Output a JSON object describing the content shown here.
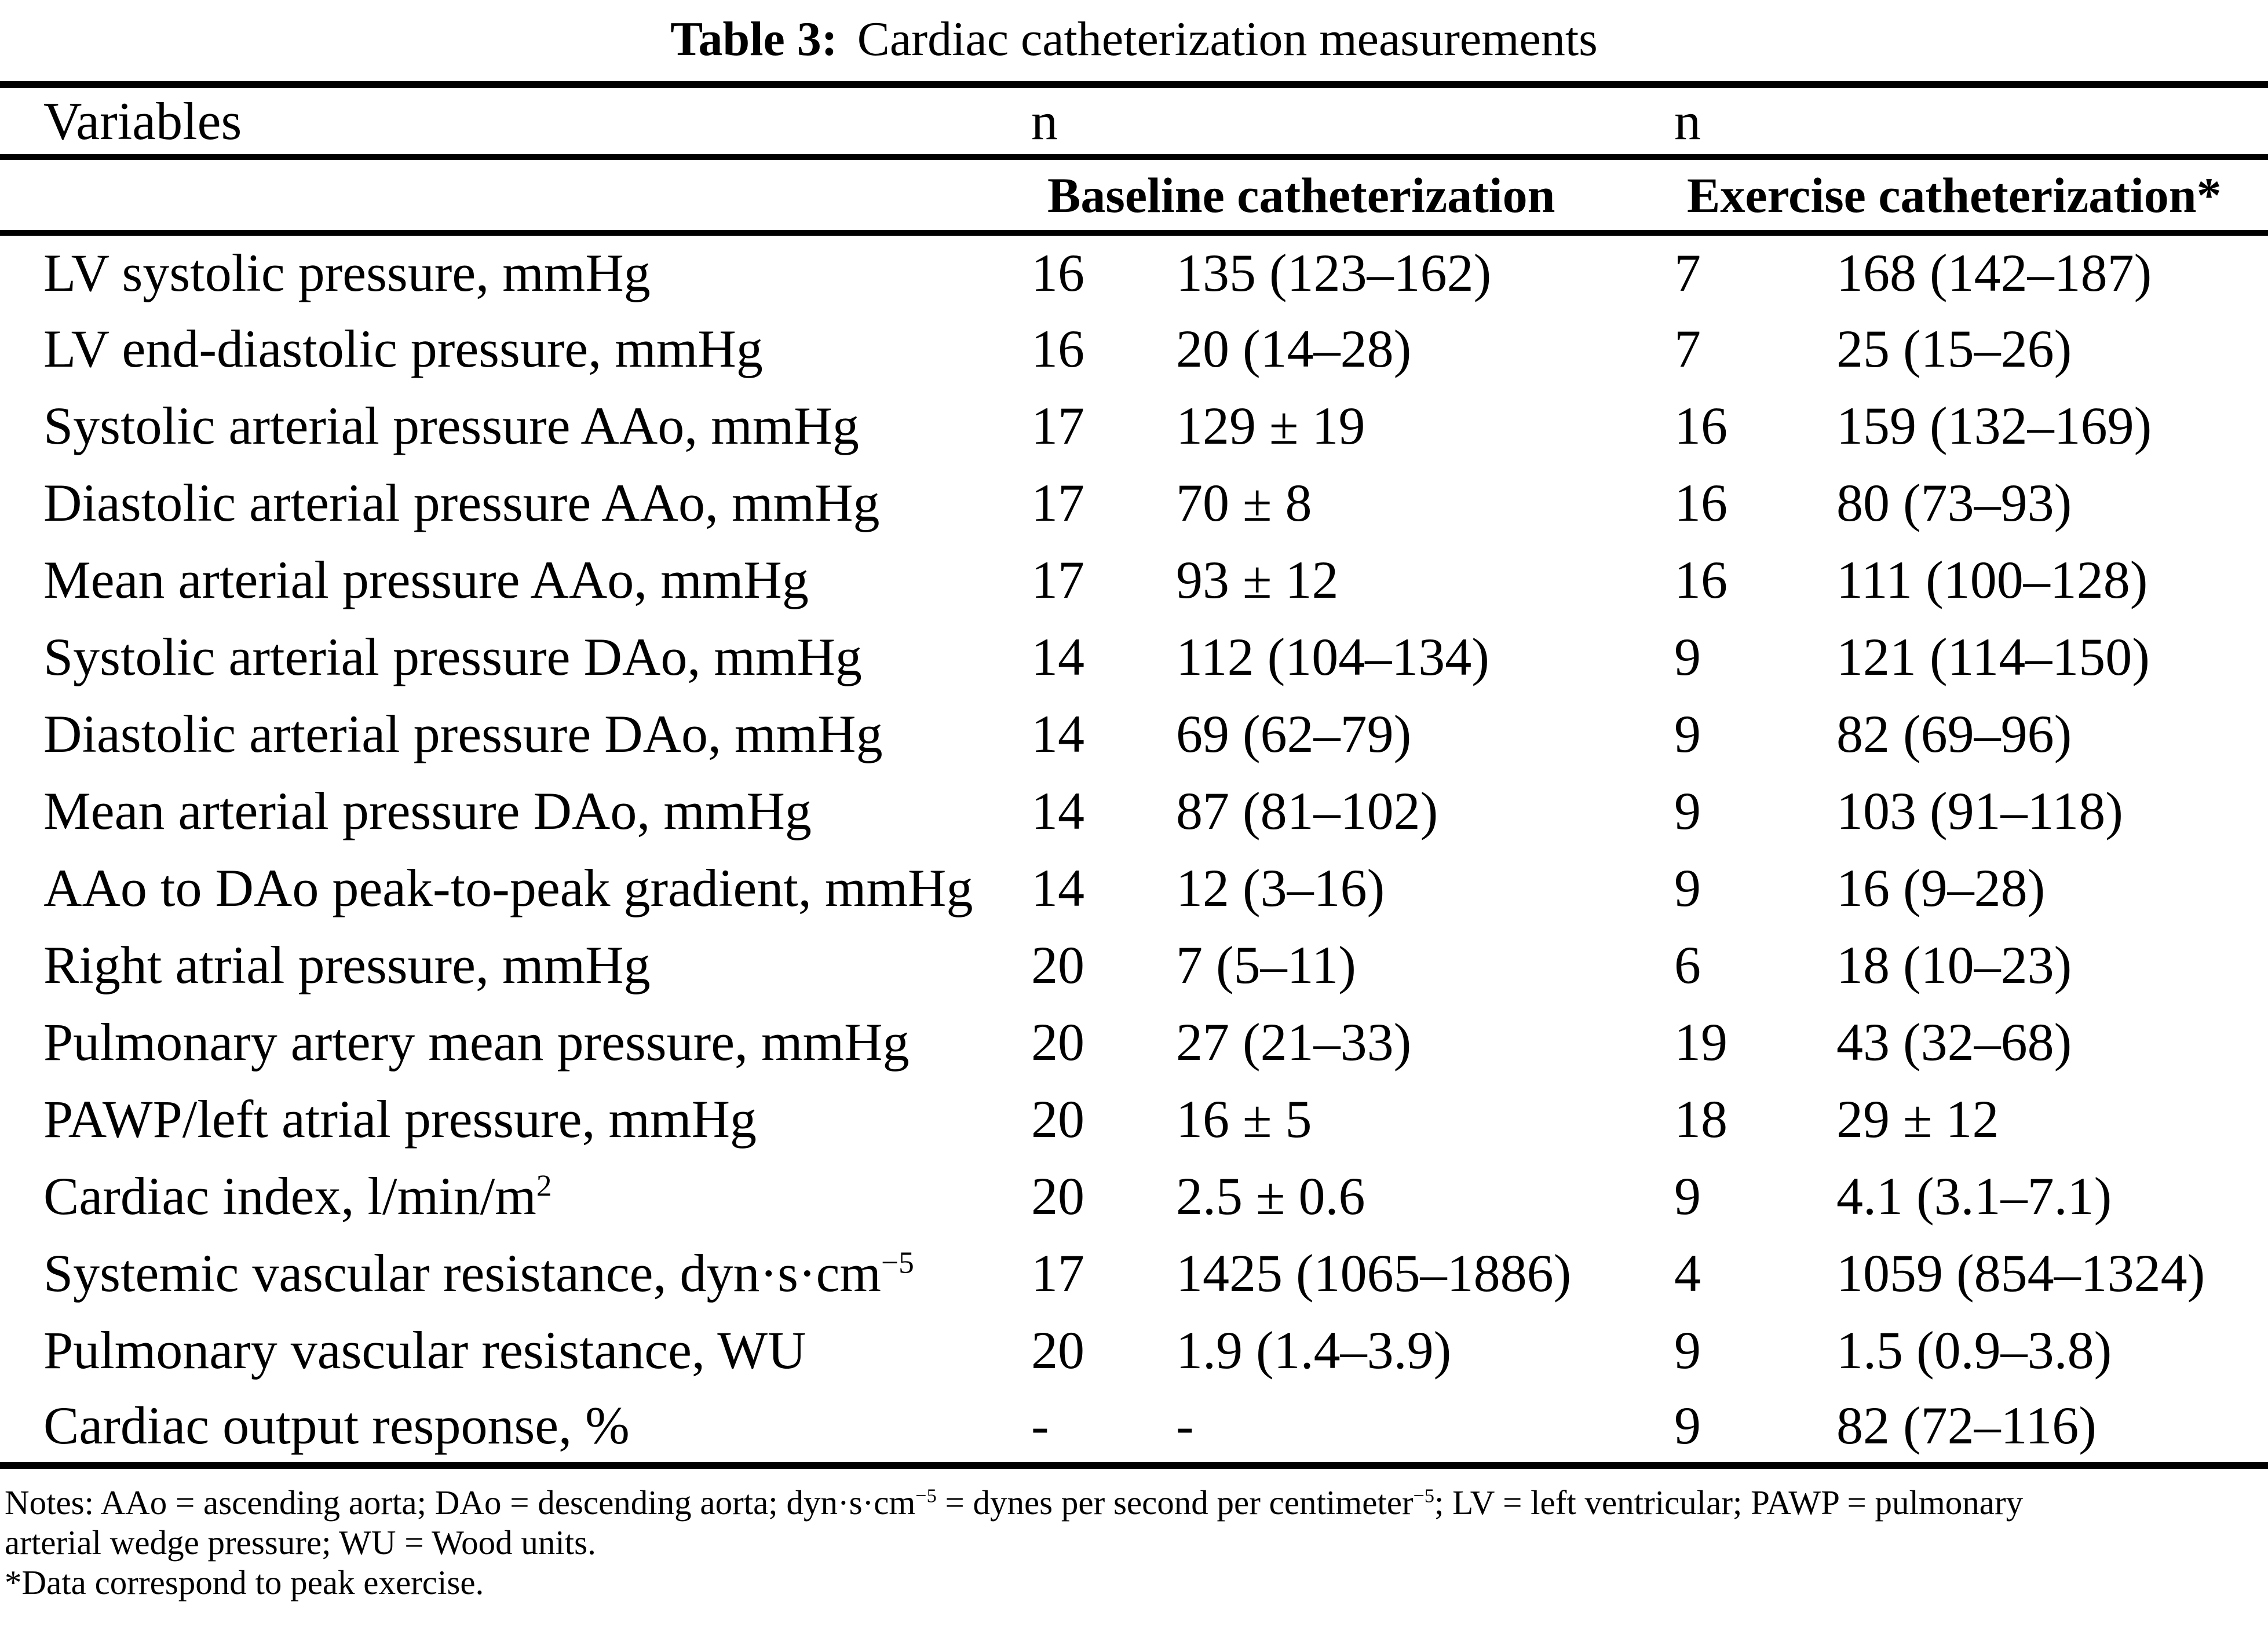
{
  "title": {
    "prefix": "Table 3:",
    "text": "Cardiac catheterization measurements"
  },
  "table": {
    "col_headers": {
      "variables": "Variables",
      "n_baseline": "n",
      "n_exercise": "n",
      "baseline_section": "Baseline catheterization",
      "exercise_section": "Exercise catheterization*"
    },
    "rows": [
      {
        "variable": "LV systolic pressure, mmHg",
        "n_baseline": "16",
        "baseline": "135 (123–162)",
        "n_exercise": "7",
        "exercise": "168 (142–187)"
      },
      {
        "variable": "LV end-diastolic pressure, mmHg",
        "n_baseline": "16",
        "baseline": "20 (14–28)",
        "n_exercise": "7",
        "exercise": "25 (15–26)"
      },
      {
        "variable": "Systolic arterial pressure AAo, mmHg",
        "n_baseline": "17",
        "baseline": "129 ± 19",
        "n_exercise": "16",
        "exercise": "159 (132–169)"
      },
      {
        "variable": "Diastolic arterial pressure AAo, mmHg",
        "n_baseline": "17",
        "baseline": "70 ± 8",
        "n_exercise": "16",
        "exercise": "80 (73–93)"
      },
      {
        "variable": "Mean arterial pressure AAo, mmHg",
        "n_baseline": "17",
        "baseline": "93 ± 12",
        "n_exercise": "16",
        "exercise": "111 (100–128)"
      },
      {
        "variable": "Systolic arterial pressure DAo, mmHg",
        "n_baseline": "14",
        "baseline": "112 (104–134)",
        "n_exercise": "9",
        "exercise": "121 (114–150)"
      },
      {
        "variable": "Diastolic arterial pressure DAo, mmHg",
        "n_baseline": "14",
        "baseline": "69 (62–79)",
        "n_exercise": "9",
        "exercise": "82 (69–96)"
      },
      {
        "variable": "Mean arterial pressure DAo, mmHg",
        "n_baseline": "14",
        "baseline": "87 (81–102)",
        "n_exercise": "9",
        "exercise": "103 (91–118)"
      },
      {
        "variable": "AAo to DAo peak-to-peak gradient, mmHg",
        "n_baseline": "14",
        "baseline": "12 (3–16)",
        "n_exercise": "9",
        "exercise": "16 (9–28)"
      },
      {
        "variable": "Right atrial pressure, mmHg",
        "n_baseline": "20",
        "baseline": "7 (5–11)",
        "n_exercise": "6",
        "exercise": "18 (10–23)"
      },
      {
        "variable": "Pulmonary artery mean pressure, mmHg",
        "n_baseline": "20",
        "baseline": "27 (21–33)",
        "n_exercise": "19",
        "exercise": "43 (32–68)"
      },
      {
        "variable": "PAWP/left atrial pressure, mmHg",
        "n_baseline": "20",
        "baseline": "16 ± 5",
        "n_exercise": "18",
        "exercise": "29 ± 12"
      },
      {
        "variable": "Cardiac index, l/min/m",
        "variable_sup": "2",
        "n_baseline": "20",
        "baseline": "2.5 ± 0.6",
        "n_exercise": "9",
        "exercise": "4.1 (3.1–7.1)"
      },
      {
        "variable": "Systemic vascular resistance, dyn·s·cm",
        "variable_sup": "−5",
        "n_baseline": "17",
        "baseline": "1425 (1065–1886)",
        "n_exercise": "4",
        "exercise": "1059 (854–1324)"
      },
      {
        "variable": "Pulmonary vascular resistance, WU",
        "n_baseline": "20",
        "baseline": "1.9 (1.4–3.9)",
        "n_exercise": "9",
        "exercise": "1.5 (0.9–3.8)"
      },
      {
        "variable": "Cardiac output response, %",
        "n_baseline": "-",
        "baseline": "-",
        "n_exercise": "9",
        "exercise": "82 (72–116)"
      }
    ]
  },
  "notes": {
    "l1a": "Notes: AAo = ascending aorta; DAo = descending aorta; dyn·s·cm",
    "l1sup1": "−5",
    "l1b": " = dynes per second per centimeter",
    "l1sup2": "−5",
    "l1c": "; LV = left ventricular; PAWP = pulmonary",
    "line2": "arterial wedge pressure; WU = Wood units.",
    "line3": "*Data correspond to peak exercise."
  }
}
